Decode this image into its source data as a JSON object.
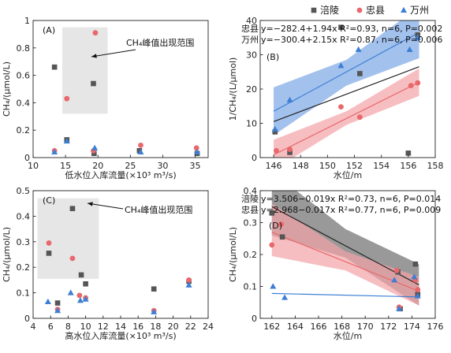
{
  "legend": {
    "items": [
      {
        "name": "涪陵",
        "marker": "square",
        "color": "#555555"
      },
      {
        "name": "忠县",
        "marker": "circle",
        "color": "#e8686b"
      },
      {
        "name": "万州",
        "marker": "triangle",
        "color": "#3d7fd4"
      }
    ]
  },
  "colors": {
    "fuling": "#555555",
    "zhongxian": "#e8686b",
    "wanzhou": "#3d7fd4",
    "band_blue": "#7aa7e6",
    "band_red": "#f3a3a6",
    "band_gray": "#777777",
    "highlight_box": "#e6e6e6"
  },
  "chart_data": [
    {
      "type": "scatter",
      "panel_label": "(A)",
      "xlabel": "低水位入库流量(×10³ m³/s)",
      "ylabel": "CH₄/(μmol/L)",
      "xlim": [
        10,
        37
      ],
      "ylim": [
        0,
        1.0
      ],
      "xticks": [
        10,
        15,
        20,
        25,
        30,
        35
      ],
      "yticks": [
        0,
        0.2,
        0.4,
        0.6,
        0.8,
        1.0
      ],
      "annotation": "CH₄峰值出现范围",
      "series": [
        {
          "name": "涪陵",
          "points": [
            [
              13.3,
              0.66
            ],
            [
              15.2,
              0.13
            ],
            [
              19.3,
              0.54
            ],
            [
              19.4,
              0.03
            ],
            [
              26.4,
              0.05
            ],
            [
              35.3,
              0.03
            ]
          ]
        },
        {
          "name": "忠县",
          "points": [
            [
              13.3,
              0.05
            ],
            [
              15.2,
              0.43
            ],
            [
              19.3,
              0.05
            ],
            [
              19.6,
              0.91
            ],
            [
              26.6,
              0.09
            ],
            [
              35.2,
              0.07
            ]
          ]
        },
        {
          "name": "万州",
          "points": [
            [
              13.3,
              0.04
            ],
            [
              15.2,
              0.12
            ],
            [
              19.5,
              0.07
            ],
            [
              26.6,
              0.04
            ],
            [
              35.3,
              0.04
            ]
          ]
        }
      ]
    },
    {
      "type": "scatter",
      "panel_label": "(B)",
      "xlabel": "水位/m",
      "ylabel": "1/CH₄/(L/μmol)",
      "xlim": [
        145,
        158
      ],
      "ylim": [
        0,
        40
      ],
      "xticks": [
        146,
        148,
        150,
        152,
        154,
        156,
        158
      ],
      "yticks": [
        0,
        10,
        20,
        30,
        40
      ],
      "equations": [
        {
          "name": "忠县",
          "text": "y=−282.4+1.94x R²=0.93, n=6, P=0.002"
        },
        {
          "name": "万州",
          "text": "y=−300.4+2.15x R²=0.87, n=6, P=0.006"
        }
      ],
      "series": [
        {
          "name": "涪陵",
          "points": [
            [
              146.1,
              7.5
            ],
            [
              147.2,
              1.5
            ],
            [
              151.0,
              38.0
            ],
            [
              152.4,
              24.5
            ],
            [
              156.0,
              1.3
            ],
            [
              156.7,
              35.8
            ]
          ]
        },
        {
          "name": "忠县",
          "points": [
            [
              146.2,
              2.0
            ],
            [
              147.2,
              2.4
            ],
            [
              151.0,
              14.8
            ],
            [
              152.4,
              11.8
            ],
            [
              156.2,
              21.0
            ],
            [
              156.7,
              21.8
            ]
          ]
        },
        {
          "name": "万州",
          "points": [
            [
              146.1,
              8.3
            ],
            [
              147.2,
              16.8
            ],
            [
              151.0,
              26.8
            ],
            [
              152.3,
              31.5
            ],
            [
              156.1,
              31.5
            ],
            [
              156.7,
              35.0
            ]
          ]
        }
      ],
      "fits": [
        {
          "name": "涪陵",
          "x": [
            146.0,
            156.8
          ],
          "y": [
            10.5,
            26.5
          ]
        },
        {
          "name": "忠县",
          "x": [
            146.0,
            156.8
          ],
          "y": [
            0.8,
            22.0
          ],
          "band_lower": [
            [
              146.0,
              -3.5
            ],
            [
              151.4,
              9.5
            ],
            [
              156.8,
              18.0
            ]
          ],
          "band_upper": [
            [
              146.0,
              5.2
            ],
            [
              151.4,
              13.5
            ],
            [
              156.8,
              26.0
            ]
          ]
        },
        {
          "name": "万州",
          "x": [
            146.0,
            156.8
          ],
          "y": [
            13.5,
            36.5
          ],
          "band_lower": [
            [
              146.0,
              6.5
            ],
            [
              151.4,
              21.0
            ],
            [
              156.8,
              29.0
            ]
          ],
          "band_upper": [
            [
              146.0,
              20.5
            ],
            [
              151.4,
              28.5
            ],
            [
              156.8,
              44.0
            ]
          ]
        }
      ]
    },
    {
      "type": "scatter",
      "panel_label": "(C)",
      "xlabel": "高水位入库流量(×10³ m³/s)",
      "ylabel": "CH₄/(μmol/L)",
      "xlim": [
        4,
        24
      ],
      "ylim": [
        0,
        0.5
      ],
      "xticks": [
        4,
        6,
        8,
        10,
        12,
        14,
        16,
        18,
        20,
        22,
        24
      ],
      "yticks": [
        0,
        0.1,
        0.2,
        0.3,
        0.4,
        0.5
      ],
      "annotation": "CH₄峰值出现范围",
      "series": [
        {
          "name": "涪陵",
          "points": [
            [
              5.8,
              0.255
            ],
            [
              6.8,
              0.06
            ],
            [
              8.5,
              0.43
            ],
            [
              9.5,
              0.17
            ],
            [
              10.0,
              0.135
            ],
            [
              17.8,
              0.115
            ],
            [
              21.8,
              0.145
            ]
          ]
        },
        {
          "name": "忠县",
          "points": [
            [
              5.8,
              0.295
            ],
            [
              6.8,
              0.035
            ],
            [
              8.5,
              0.235
            ],
            [
              9.3,
              0.09
            ],
            [
              10.0,
              0.08
            ],
            [
              17.8,
              0.03
            ],
            [
              21.8,
              0.15
            ]
          ]
        },
        {
          "name": "万州",
          "points": [
            [
              5.7,
              0.065
            ],
            [
              6.8,
              0.03
            ],
            [
              8.3,
              0.1
            ],
            [
              9.4,
              0.07
            ],
            [
              10.0,
              0.075
            ],
            [
              17.8,
              0.025
            ],
            [
              21.8,
              0.13
            ]
          ]
        }
      ]
    },
    {
      "type": "scatter",
      "panel_label": "(D)",
      "xlabel": "水位/m",
      "ylabel": "CH₄/(μmol/L)",
      "xlim": [
        161,
        176
      ],
      "ylim": [
        0,
        0.4
      ],
      "xticks": [
        162,
        164,
        166,
        168,
        170,
        172,
        174,
        176
      ],
      "yticks": [
        0,
        0.1,
        0.2,
        0.3,
        0.4
      ],
      "equations": [
        {
          "name": "涪陵",
          "text": "y=3.506−0.019x R²=0.73, n=6, P=0.014"
        },
        {
          "name": "忠县",
          "text": "y=2.968−0.017x R²=0.77, n=6, P=0.009"
        }
      ],
      "series": [
        {
          "name": "涪陵",
          "points": [
            [
              162.0,
              0.33
            ],
            [
              162.9,
              0.255
            ],
            [
              172.8,
              0.145
            ],
            [
              173.0,
              0.03
            ],
            [
              174.3,
              0.17
            ],
            [
              174.5,
              0.075
            ]
          ]
        },
        {
          "name": "忠县",
          "points": [
            [
              162.0,
              0.23
            ],
            [
              162.8,
              0.295
            ],
            [
              172.7,
              0.15
            ],
            [
              172.9,
              0.035
            ],
            [
              174.3,
              0.12
            ],
            [
              174.5,
              0.09
            ]
          ]
        },
        {
          "name": "万州",
          "points": [
            [
              162.1,
              0.1
            ],
            [
              163.1,
              0.065
            ],
            [
              172.5,
              0.12
            ],
            [
              172.9,
              0.03
            ],
            [
              174.2,
              0.13
            ],
            [
              174.5,
              0.07
            ]
          ]
        }
      ],
      "fits": [
        {
          "name": "涪陵",
          "x": [
            162.0,
            174.6
          ],
          "y": [
            0.35,
            0.105
          ],
          "band_lower": [
            [
              162.0,
              0.26
            ],
            [
              168.3,
              0.19
            ],
            [
              174.6,
              0.04
            ]
          ],
          "band_upper": [
            [
              162.0,
              0.46
            ],
            [
              168.3,
              0.28
            ],
            [
              174.6,
              0.17
            ]
          ]
        },
        {
          "name": "忠县",
          "x": [
            162.0,
            174.6
          ],
          "y": [
            0.27,
            0.085
          ],
          "band_lower": [
            [
              162.0,
              0.195
            ],
            [
              168.3,
              0.15
            ],
            [
              174.6,
              0.04
            ]
          ],
          "band_upper": [
            [
              162.0,
              0.36
            ],
            [
              168.3,
              0.21
            ],
            [
              174.6,
              0.13
            ]
          ]
        },
        {
          "name": "万州",
          "x": [
            162.0,
            174.6
          ],
          "y": [
            0.078,
            0.067
          ]
        }
      ]
    }
  ]
}
